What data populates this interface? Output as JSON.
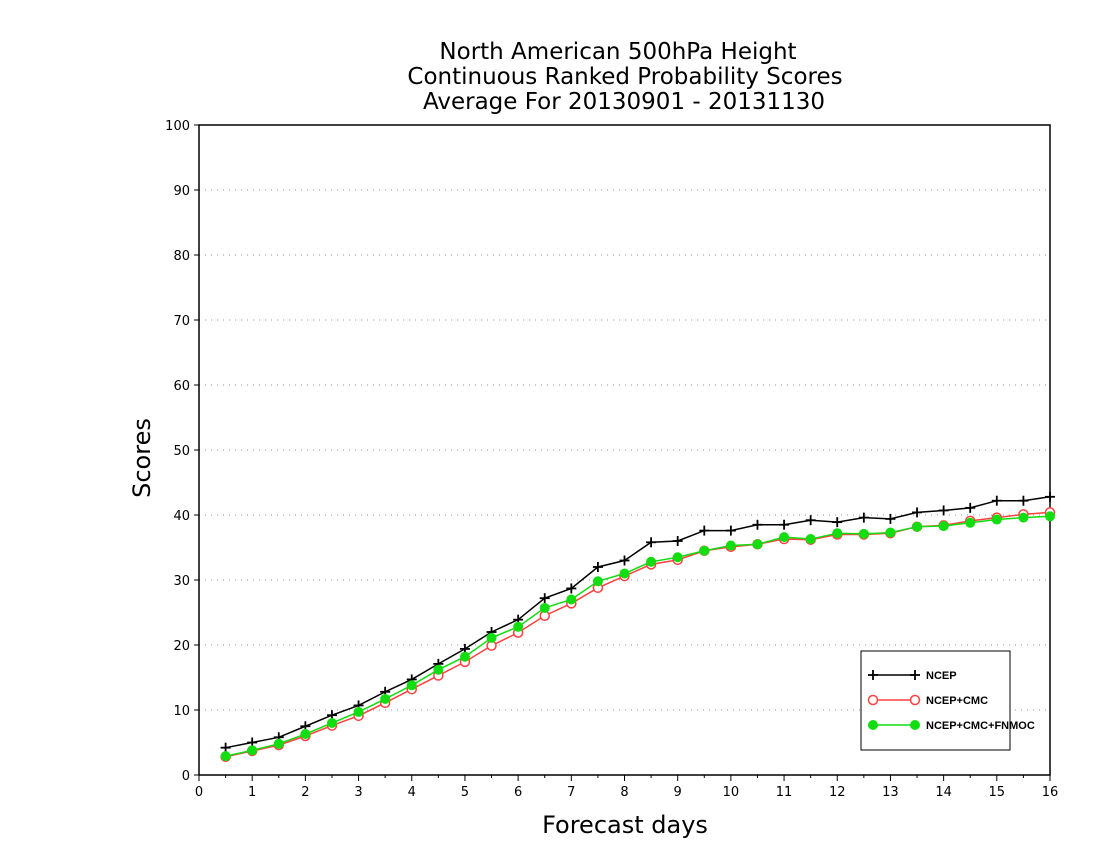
{
  "chart_data": {
    "type": "line",
    "title": [
      "North American 500hPa Height",
      "Continuous Ranked Probability Scores",
      "Average For 20130901 - 20131130"
    ],
    "xlabel": "Forecast days",
    "ylabel": "Scores",
    "xlim": [
      0,
      16
    ],
    "ylim": [
      0,
      100
    ],
    "xticks": [
      "0",
      "1",
      "2",
      "3",
      "4",
      "5",
      "6",
      "7",
      "8",
      "9",
      "10",
      "11",
      "12",
      "13",
      "14",
      "15",
      "16"
    ],
    "yticks": [
      "0",
      "10",
      "20",
      "30",
      "40",
      "50",
      "60",
      "70",
      "80",
      "90",
      "100"
    ],
    "grid": true,
    "legend_position": "bottom-right",
    "x": [
      0.5,
      1.0,
      1.5,
      2.0,
      2.5,
      3.0,
      3.5,
      4.0,
      4.5,
      5.0,
      5.5,
      6.0,
      6.5,
      7.0,
      7.5,
      8.0,
      8.5,
      9.0,
      9.5,
      10.0,
      10.5,
      11.0,
      11.5,
      12.0,
      12.5,
      13.0,
      13.5,
      14.0,
      14.5,
      15.0,
      15.5,
      16.0
    ],
    "series": [
      {
        "name": "NCEP",
        "color": "#000000",
        "marker": "plus",
        "values": [
          4.2,
          5.0,
          5.8,
          7.5,
          9.2,
          10.7,
          12.8,
          14.7,
          17.1,
          19.4,
          22.0,
          23.9,
          27.2,
          28.7,
          32.0,
          33.0,
          35.8,
          36.0,
          37.6,
          37.6,
          38.5,
          38.5,
          39.2,
          38.9,
          39.6,
          39.4,
          40.4,
          40.7,
          41.1,
          42.2,
          42.2,
          42.8
        ]
      },
      {
        "name": "NCEP+CMC",
        "color": "#ff4040",
        "marker": "open-circle",
        "values": [
          2.8,
          3.7,
          4.6,
          6.0,
          7.6,
          9.1,
          11.1,
          13.2,
          15.3,
          17.4,
          19.9,
          21.9,
          24.5,
          26.4,
          28.8,
          30.6,
          32.4,
          33.1,
          34.5,
          35.1,
          35.5,
          36.3,
          36.2,
          37.0,
          37.0,
          37.2,
          38.2,
          38.4,
          39.1,
          39.6,
          40.1,
          40.4
        ]
      },
      {
        "name": "NCEP+CMC+FNMOC",
        "color": "#11dd11",
        "marker": "filled-circle",
        "values": [
          2.9,
          3.8,
          4.8,
          6.3,
          8.0,
          9.7,
          11.7,
          13.8,
          16.2,
          18.2,
          21.1,
          22.8,
          25.7,
          27.0,
          29.8,
          31.0,
          32.8,
          33.5,
          34.5,
          35.3,
          35.5,
          36.6,
          36.3,
          37.2,
          37.1,
          37.3,
          38.2,
          38.3,
          38.8,
          39.3,
          39.6,
          39.8
        ]
      }
    ]
  }
}
